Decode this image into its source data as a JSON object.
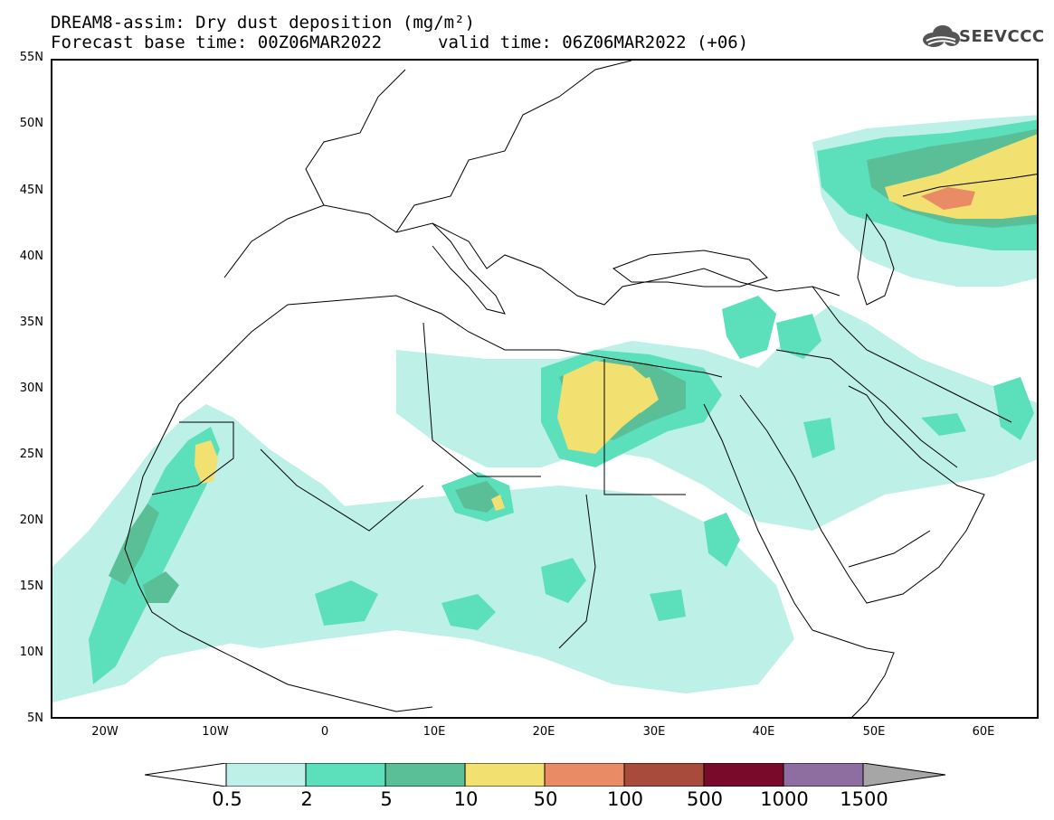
{
  "header": {
    "title": "DREAM8-assim: Dry dust deposition (mg/m²)",
    "base_time": "Forecast base time: 00Z06MAR2022",
    "valid_time": "valid time: 06Z06MAR2022 (+06)",
    "logo_text": "SEEVCCC"
  },
  "axes": {
    "lat_labels": [
      "55N",
      "50N",
      "45N",
      "40N",
      "35N",
      "30N",
      "25N",
      "20N",
      "15N",
      "10N",
      "5N"
    ],
    "lon_labels": [
      "20W",
      "10W",
      "0",
      "10E",
      "20E",
      "30E",
      "40E",
      "50E",
      "60E"
    ]
  },
  "legend": {
    "labels": [
      "0.5",
      "2",
      "5",
      "10",
      "50",
      "100",
      "500",
      "1000",
      "1500"
    ],
    "colors": [
      "#bdf0e6",
      "#5ce0bb",
      "#5abf97",
      "#f2e070",
      "#e98c65",
      "#a84b3d",
      "#7a0a2a",
      "#8e6da0",
      "#a6a6a6"
    ]
  },
  "map_colors": {
    "c1": "#bdf0e6",
    "c2": "#5ce0bb",
    "c3": "#5abf97",
    "c4": "#f2e070",
    "c5": "#e98c65"
  }
}
